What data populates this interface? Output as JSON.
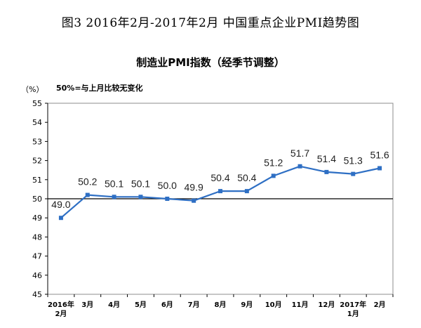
{
  "figure_title": "图3   2016年2月-2017年2月   中国重点企业PMI趋势图",
  "unit_label": "（%）",
  "note": "50%=与上月比较无变化",
  "chart_data": {
    "type": "line",
    "title": "制造业PMI指数（经季节调整）",
    "xlabel": "",
    "ylabel": "",
    "categories": [
      [
        "2016年",
        "2月"
      ],
      [
        "3月"
      ],
      [
        "4月"
      ],
      [
        "5月"
      ],
      [
        "6月"
      ],
      [
        "7月"
      ],
      [
        "8月"
      ],
      [
        "9月"
      ],
      [
        "10月"
      ],
      [
        "11月"
      ],
      [
        "12月"
      ],
      [
        "2017年",
        "1月"
      ],
      [
        "2月"
      ]
    ],
    "series": [
      {
        "values": [
          49.0,
          50.2,
          50.1,
          50.1,
          50.0,
          49.9,
          50.4,
          50.4,
          51.2,
          51.7,
          51.4,
          51.3,
          51.6
        ]
      }
    ],
    "data_labels": [
      "49.0",
      "50.2",
      "50.1",
      "50.1",
      "50.0",
      "49.9",
      "50.4",
      "50.4",
      "51.2",
      "51.7",
      "51.4",
      "51.3",
      "51.6"
    ],
    "ylim": [
      45,
      55
    ],
    "yticks": [
      45,
      46,
      47,
      48,
      49,
      50,
      51,
      52,
      53,
      54,
      55
    ],
    "reference_line": 50,
    "grid": false,
    "legend": "none",
    "colors": {
      "line": "#2e6fc4",
      "marker": "#2e6fc4",
      "reference": "#000000",
      "axis": "#000000"
    }
  }
}
